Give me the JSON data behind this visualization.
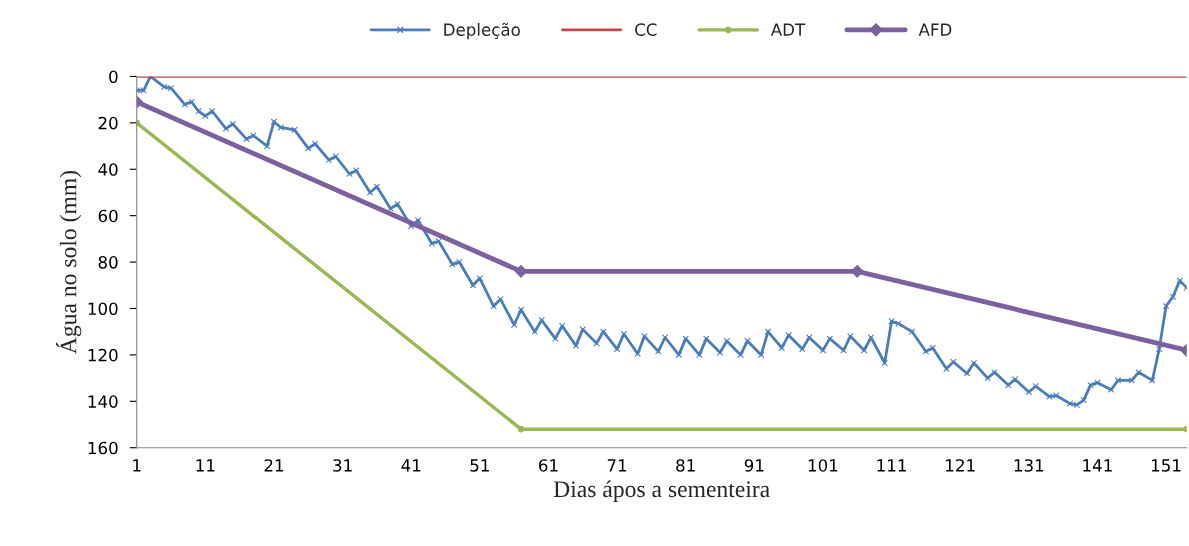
{
  "chart_data": {
    "type": "line",
    "xlabel": "Dias ápos a sementeira",
    "ylabel": "Água no solo (mm)",
    "xlim": [
      1,
      154
    ],
    "xticks": [
      1,
      11,
      21,
      31,
      41,
      51,
      61,
      71,
      81,
      91,
      101,
      111,
      121,
      131,
      141,
      151
    ],
    "ylim": [
      160,
      0
    ],
    "yticks": [
      0,
      20,
      40,
      60,
      80,
      100,
      120,
      140,
      160
    ],
    "grid": false,
    "legend": "top",
    "line_style": "solid",
    "series": [
      {
        "name": "Depleção",
        "color": "#4a7ebb",
        "marker": "cross",
        "x": [
          1,
          2,
          3,
          5,
          6,
          8,
          9,
          10,
          11,
          12,
          14,
          15,
          17,
          18,
          20,
          21,
          22,
          24,
          26,
          27,
          29,
          30,
          32,
          33,
          35,
          36,
          38,
          39,
          41,
          42,
          44,
          45,
          47,
          48,
          50,
          51,
          53,
          54,
          56,
          57,
          59,
          60,
          62,
          63,
          65,
          66,
          68,
          69,
          71,
          72,
          74,
          75,
          77,
          78,
          80,
          81,
          83,
          84,
          86,
          87,
          89,
          90,
          92,
          93,
          95,
          96,
          98,
          99,
          101,
          102,
          104,
          105,
          107,
          108,
          110,
          111,
          112,
          114,
          116,
          117,
          119,
          120,
          122,
          123,
          125,
          126,
          128,
          129,
          131,
          132,
          134,
          135,
          137,
          138,
          139,
          140,
          141,
          143,
          144,
          146,
          147,
          149,
          150,
          151,
          152,
          153,
          154
        ],
        "values": [
          6,
          6,
          0,
          4.5,
          5,
          12,
          11,
          15,
          17,
          15,
          22.5,
          20.5,
          27,
          25.5,
          30,
          19.5,
          22,
          23,
          31,
          29,
          36,
          34.5,
          42,
          40.5,
          50,
          47.5,
          57,
          55,
          64.5,
          62,
          72,
          71,
          81,
          80,
          90,
          87,
          99,
          96,
          107,
          100.5,
          110,
          105,
          113,
          107.5,
          116,
          109,
          115,
          110,
          117.5,
          111,
          119.5,
          112,
          118.5,
          112.5,
          120,
          113,
          120,
          113,
          119,
          114,
          120,
          114,
          120,
          110,
          117,
          111.5,
          117.5,
          112.5,
          118,
          113,
          118,
          112,
          118,
          112.5,
          123.5,
          105.5,
          106.5,
          110,
          118.5,
          117,
          126,
          123,
          128,
          123.5,
          130,
          127.5,
          133,
          130.5,
          136,
          133.5,
          138,
          137.5,
          141,
          141.5,
          139.5,
          133,
          132,
          135,
          131,
          131,
          127.5,
          131,
          117.5,
          99,
          95,
          88,
          91
        ]
      },
      {
        "name": "CC",
        "color": "#be4b48",
        "marker": "none",
        "x": [
          1,
          154
        ],
        "values": [
          0,
          0
        ]
      },
      {
        "name": "ADT",
        "color": "#98b954",
        "marker": "circle",
        "x": [
          1,
          57,
          154
        ],
        "values": [
          20,
          152,
          152
        ]
      },
      {
        "name": "AFD",
        "color": "#7d60a0",
        "marker": "diamond",
        "x": [
          1,
          57,
          106,
          154
        ],
        "values": [
          11,
          84,
          84,
          118
        ]
      }
    ]
  }
}
